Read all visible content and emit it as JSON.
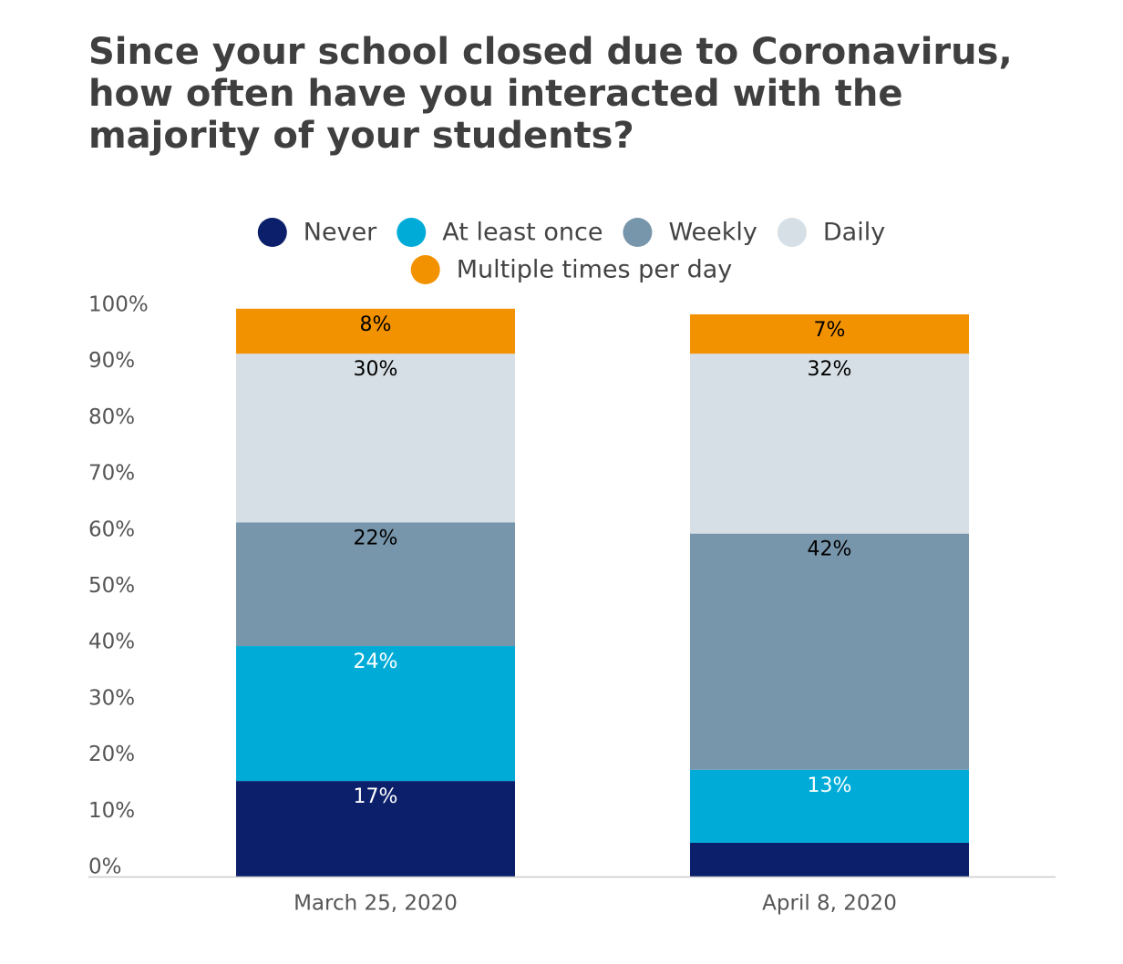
{
  "title_lines": [
    "Since your school closed due to Coronavirus,",
    "how often have you interacted with the",
    "majority of your students?"
  ],
  "chart_data": {
    "type": "bar",
    "stacked": true,
    "title": "Since your school closed due to Coronavirus, how often have you interacted with the majority of your students?",
    "xlabel": "",
    "ylabel": "",
    "categories": [
      "March 25, 2020",
      "April 8, 2020"
    ],
    "ylim": [
      0,
      100
    ],
    "yticks": [
      0,
      10,
      20,
      30,
      40,
      50,
      60,
      70,
      80,
      90,
      100
    ],
    "ytick_labels": [
      "0%",
      "10%",
      "20%",
      "30%",
      "40%",
      "50%",
      "60%",
      "70%",
      "80%",
      "90%",
      "100%"
    ],
    "grid": false,
    "legend_position": "top",
    "series": [
      {
        "name": "Never",
        "color": "#0b1f6b",
        "values": [
          17,
          6
        ],
        "labels": [
          "17%",
          ""
        ],
        "label_color": "#ffffff"
      },
      {
        "name": "At least once",
        "color": "#00acd7",
        "values": [
          24,
          13
        ],
        "labels": [
          "24%",
          "13%"
        ],
        "label_color": "#ffffff"
      },
      {
        "name": "Weekly",
        "color": "#7896ab",
        "values": [
          22,
          42
        ],
        "labels": [
          "22%",
          "42%"
        ],
        "label_color": "#000000"
      },
      {
        "name": "Daily",
        "color": "#d6dfe5",
        "values": [
          30,
          32
        ],
        "labels": [
          "30%",
          "32%"
        ],
        "label_color": "#000000"
      },
      {
        "name": "Multiple times per day",
        "color": "#f39200",
        "values": [
          8,
          7
        ],
        "labels": [
          "8%",
          "7%"
        ],
        "label_color": "#000000"
      }
    ]
  }
}
